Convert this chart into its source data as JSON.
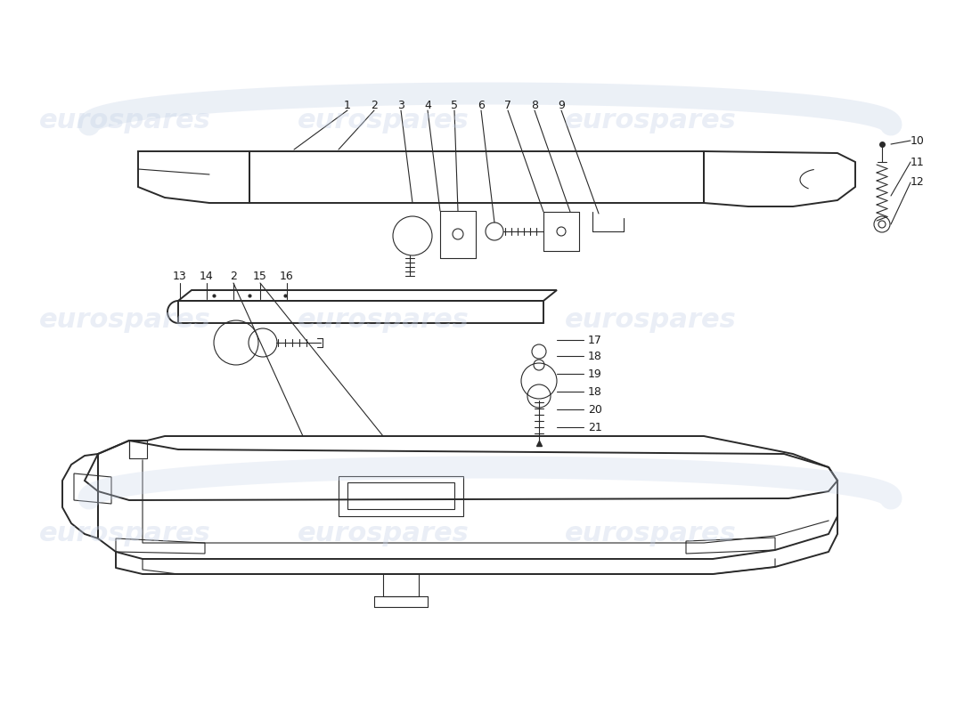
{
  "bg_color": "#ffffff",
  "wm_color": "#c8d4e8",
  "wm_text": "eurospares",
  "lc": "#2a2a2a",
  "lw_main": 1.4,
  "lw_thin": 0.8,
  "label_fs": 9,
  "wm_fs": 22
}
